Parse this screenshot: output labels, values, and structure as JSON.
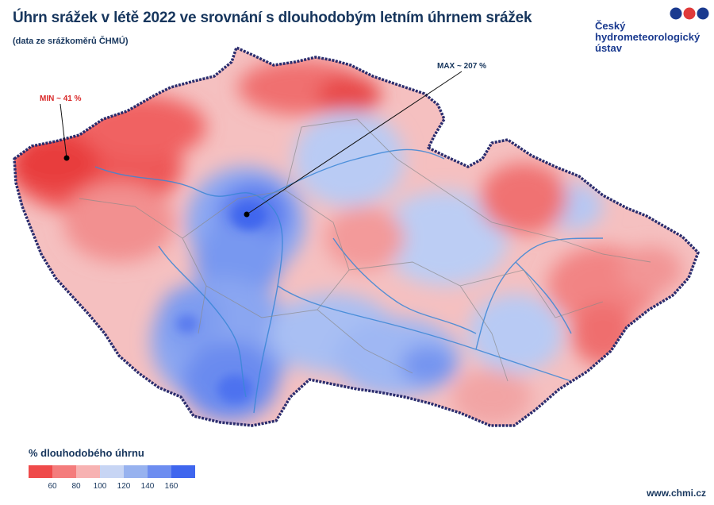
{
  "title": "Úhrn srážek v létě 2022 ve srovnání s dlouhodobým letním úhrnem srážek",
  "subtitle": "(data ze srážkoměrů ČHMÚ)",
  "logo": {
    "name": "Český\nhydrometeorologický\nústav"
  },
  "annotations": {
    "min": "MIN ~ 41 %",
    "max": "MAX ~ 207 %"
  },
  "legend": {
    "title": "% dlouhodobého úhrnu",
    "ticks": [
      "60",
      "80",
      "100",
      "120",
      "140",
      "160"
    ],
    "colors": [
      "#ef4a4a",
      "#f47c7c",
      "#f7b2b2",
      "#c7d5f4",
      "#97b2ef",
      "#6d8df0",
      "#3f66ee"
    ]
  },
  "footer": "www.chmi.cz",
  "colors": {
    "title": "#17365d",
    "min_label": "#d92828",
    "border": "#2b2d6e",
    "river": "#3a86d6",
    "district": "#8a8a8a"
  }
}
